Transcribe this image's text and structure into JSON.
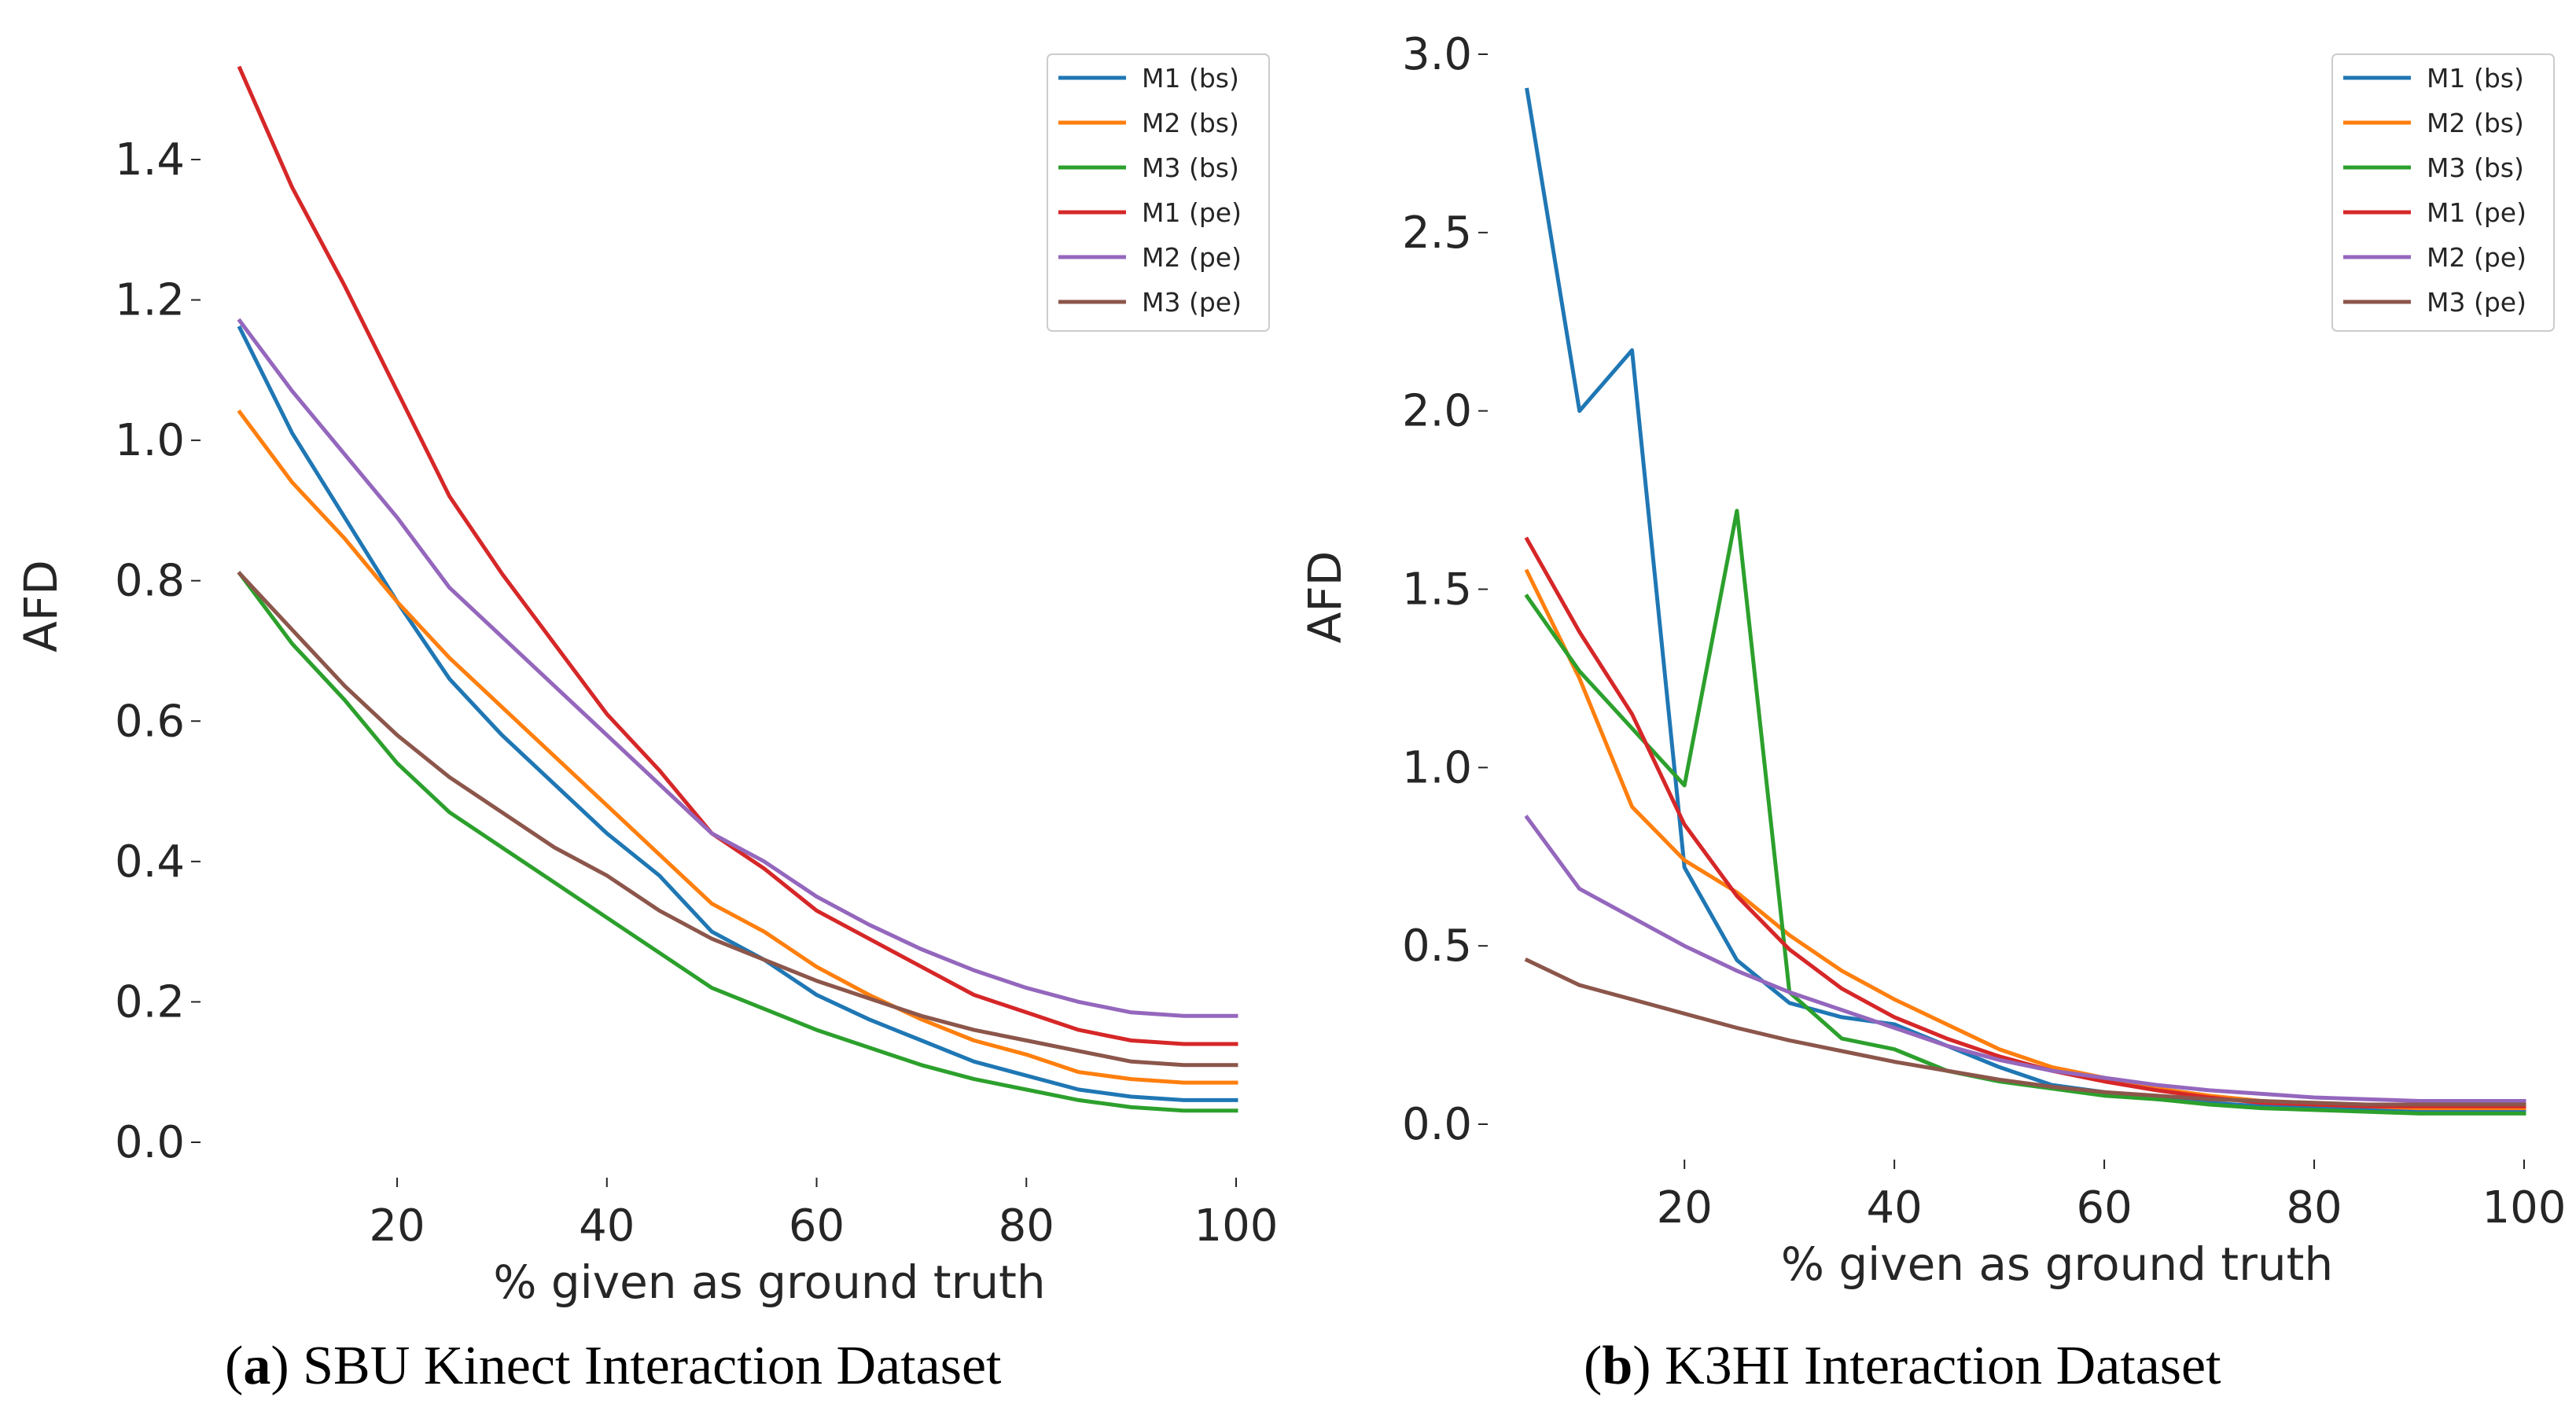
{
  "series_colors": {
    "M1 (bs)": "#1f77b4",
    "M2 (bs)": "#ff7f0e",
    "M3 (bs)": "#2ca02c",
    "M1 (pe)": "#d62728",
    "M2 (pe)": "#9467bd",
    "M3 (pe)": "#8c564b"
  },
  "chart_data": [
    {
      "type": "line",
      "caption_letter": "a",
      "caption_text": " SBU Kinect Interaction Dataset",
      "xlabel": "% given as ground truth",
      "ylabel": "AFD",
      "xlim": [
        5,
        100
      ],
      "ylim": [
        0.0,
        1.55
      ],
      "xticks": [
        20,
        40,
        60,
        80,
        100
      ],
      "xtick_labels": [
        "20",
        "40",
        "60",
        "80",
        "100"
      ],
      "yticks": [
        0.0,
        0.2,
        0.4,
        0.6,
        0.8,
        1.0,
        1.2,
        1.4
      ],
      "ytick_labels": [
        "0.0",
        "0.2",
        "0.4",
        "0.6",
        "0.8",
        "1.0",
        "1.2",
        "1.4"
      ],
      "grid": false,
      "legend_position": "top-right",
      "x": [
        5,
        10,
        15,
        20,
        25,
        30,
        35,
        40,
        45,
        50,
        55,
        60,
        65,
        70,
        75,
        80,
        85,
        90,
        95,
        100
      ],
      "series": [
        {
          "name": "M1 (bs)",
          "values": [
            1.16,
            1.01,
            0.89,
            0.77,
            0.66,
            0.58,
            0.51,
            0.44,
            0.38,
            0.3,
            0.26,
            0.21,
            0.175,
            0.145,
            0.115,
            0.095,
            0.075,
            0.065,
            0.06,
            0.06
          ]
        },
        {
          "name": "M2 (bs)",
          "values": [
            1.04,
            0.94,
            0.86,
            0.77,
            0.69,
            0.62,
            0.55,
            0.48,
            0.41,
            0.34,
            0.3,
            0.25,
            0.21,
            0.175,
            0.145,
            0.125,
            0.1,
            0.09,
            0.085,
            0.085
          ]
        },
        {
          "name": "M3 (bs)",
          "values": [
            0.81,
            0.71,
            0.63,
            0.54,
            0.47,
            0.42,
            0.37,
            0.32,
            0.27,
            0.22,
            0.19,
            0.16,
            0.135,
            0.11,
            0.09,
            0.075,
            0.06,
            0.05,
            0.045,
            0.045
          ]
        },
        {
          "name": "M1 (pe)",
          "values": [
            1.53,
            1.36,
            1.22,
            1.07,
            0.92,
            0.81,
            0.71,
            0.61,
            0.53,
            0.44,
            0.39,
            0.33,
            0.29,
            0.25,
            0.21,
            0.185,
            0.16,
            0.145,
            0.14,
            0.14
          ]
        },
        {
          "name": "M2 (pe)",
          "values": [
            1.17,
            1.07,
            0.98,
            0.89,
            0.79,
            0.72,
            0.65,
            0.58,
            0.51,
            0.44,
            0.4,
            0.35,
            0.31,
            0.275,
            0.245,
            0.22,
            0.2,
            0.185,
            0.18,
            0.18
          ]
        },
        {
          "name": "M3 (pe)",
          "values": [
            0.81,
            0.73,
            0.65,
            0.58,
            0.52,
            0.47,
            0.42,
            0.38,
            0.33,
            0.29,
            0.26,
            0.23,
            0.205,
            0.18,
            0.16,
            0.145,
            0.13,
            0.115,
            0.11,
            0.11
          ]
        }
      ]
    },
    {
      "type": "line",
      "caption_letter": "b",
      "caption_text": " K3HI Interaction Dataset",
      "xlabel": "% given as ground truth",
      "ylabel": "AFD",
      "xlim": [
        5,
        100
      ],
      "ylim": [
        0.0,
        3.0
      ],
      "xticks": [
        20,
        40,
        60,
        80,
        100
      ],
      "xtick_labels": [
        "20",
        "40",
        "60",
        "80",
        "100"
      ],
      "yticks": [
        0.0,
        0.5,
        1.0,
        1.5,
        2.0,
        2.5,
        3.0
      ],
      "ytick_labels": [
        "0.0",
        "0.5",
        "1.0",
        "1.5",
        "2.0",
        "2.5",
        "3.0"
      ],
      "grid": false,
      "legend_position": "top-right",
      "x": [
        5,
        10,
        15,
        20,
        25,
        30,
        35,
        40,
        45,
        50,
        55,
        60,
        65,
        70,
        75,
        80,
        85,
        90,
        95,
        100
      ],
      "series": [
        {
          "name": "M1 (bs)",
          "values": [
            2.9,
            2.0,
            2.17,
            0.72,
            0.46,
            0.34,
            0.3,
            0.28,
            0.22,
            0.16,
            0.11,
            0.09,
            0.07,
            0.06,
            0.05,
            0.045,
            0.04,
            0.04,
            0.04,
            0.04
          ]
        },
        {
          "name": "M2 (bs)",
          "values": [
            1.55,
            1.25,
            0.89,
            0.74,
            0.65,
            0.53,
            0.43,
            0.35,
            0.28,
            0.21,
            0.16,
            0.13,
            0.1,
            0.08,
            0.065,
            0.055,
            0.05,
            0.045,
            0.045,
            0.045
          ]
        },
        {
          "name": "M3 (bs)",
          "values": [
            1.48,
            1.27,
            1.11,
            0.95,
            1.72,
            0.37,
            0.24,
            0.21,
            0.15,
            0.12,
            0.1,
            0.08,
            0.07,
            0.055,
            0.045,
            0.04,
            0.035,
            0.03,
            0.03,
            0.03
          ]
        },
        {
          "name": "M1 (pe)",
          "values": [
            1.64,
            1.38,
            1.15,
            0.84,
            0.64,
            0.49,
            0.38,
            0.3,
            0.24,
            0.19,
            0.15,
            0.12,
            0.095,
            0.075,
            0.06,
            0.055,
            0.05,
            0.05,
            0.05,
            0.05
          ]
        },
        {
          "name": "M2 (pe)",
          "values": [
            0.86,
            0.66,
            0.58,
            0.5,
            0.43,
            0.37,
            0.32,
            0.27,
            0.22,
            0.18,
            0.15,
            0.13,
            0.11,
            0.095,
            0.085,
            0.075,
            0.07,
            0.065,
            0.065,
            0.065
          ]
        },
        {
          "name": "M3 (pe)",
          "values": [
            0.46,
            0.39,
            0.35,
            0.31,
            0.27,
            0.235,
            0.205,
            0.175,
            0.15,
            0.125,
            0.105,
            0.09,
            0.08,
            0.07,
            0.065,
            0.06,
            0.055,
            0.055,
            0.055,
            0.055
          ]
        }
      ]
    }
  ]
}
